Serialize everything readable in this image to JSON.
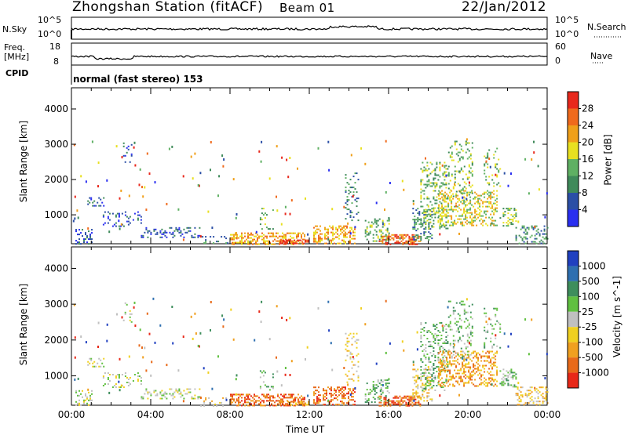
{
  "header": {
    "station": "Zhongshan Station (fitACF)",
    "beam": "Beam 01",
    "date": "22/Jan/2012"
  },
  "panels": {
    "nsky": {
      "label": "N.Sky",
      "ticks": [
        "10^5",
        "10^0"
      ],
      "right_label": "N.Search",
      "right_ticks": [
        "10^5",
        "10^0"
      ]
    },
    "freq": {
      "label_top": "Freq.",
      "label_mid": "[MHz]",
      "ticks": [
        "18",
        "8"
      ],
      "right_label": "Nave",
      "right_ticks": [
        "60",
        "0"
      ]
    },
    "cpid": {
      "label": "CPID",
      "text": "normal (fast stereo) 153"
    }
  },
  "chart_data": [
    {
      "type": "heatmap",
      "name": "power",
      "ylabel": "Slant Range [km]",
      "yticks": [
        "1000",
        "2000",
        "3000",
        "4000"
      ],
      "ylim": [
        180,
        4600
      ],
      "colorbar_label": "Power [dB]",
      "colorbar_ticks": [
        "4",
        "8",
        "12",
        "16",
        "20",
        "24",
        "28"
      ],
      "colors": [
        "#2a2ff0",
        "#2b4fa6",
        "#3f8a5a",
        "#5fb063",
        "#e8e020",
        "#f0a01a",
        "#f06a1c",
        "#e8281c"
      ]
    },
    {
      "type": "heatmap",
      "name": "velocity",
      "ylabel": "Slant Range [km]",
      "yticks": [
        "1000",
        "2000",
        "3000",
        "4000"
      ],
      "ylim": [
        180,
        4600
      ],
      "colorbar_label": "Velocity [m s^-1]",
      "colorbar_ticks": [
        "1000",
        "500",
        "100",
        "25",
        "-25",
        "-100",
        "-500",
        "-1000"
      ],
      "colors": [
        "#2040c0",
        "#2e6fb0",
        "#3e8e5c",
        "#60c040",
        "#c0c0c0",
        "#f0d020",
        "#f0a020",
        "#e86a1a",
        "#e82818"
      ]
    }
  ],
  "xaxis": {
    "label": "Time UT",
    "ticks": [
      "00:00",
      "04:00",
      "08:00",
      "12:00",
      "16:00",
      "20:00",
      "00:00"
    ]
  }
}
